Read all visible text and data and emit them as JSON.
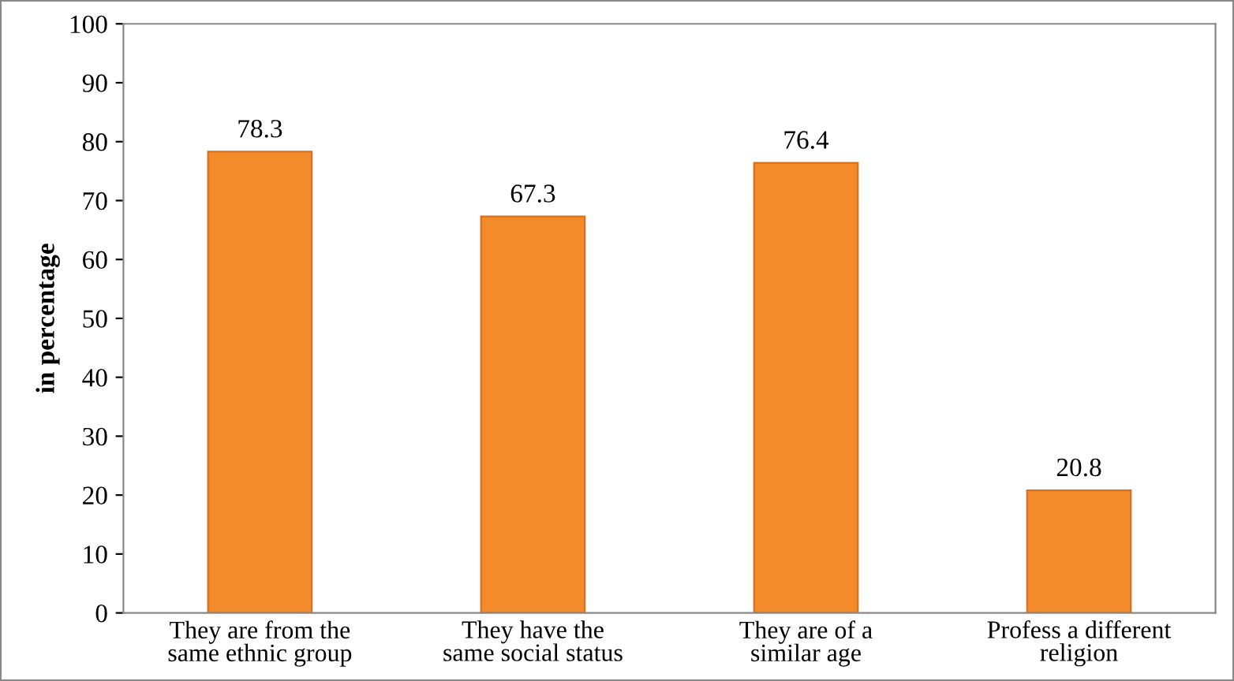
{
  "chart_data": {
    "type": "bar",
    "ylabel": "in percentage",
    "categories": [
      "They are from the\nsame ethnic group",
      "They have the\nsame social status",
      "They are of a\nsimilar age",
      "Profess a different\nreligion"
    ],
    "values": [
      78.3,
      67.3,
      76.4,
      20.8
    ],
    "color": "#f38b2a",
    "ylim": [
      0,
      100
    ],
    "yticks": [
      0,
      10,
      20,
      30,
      40,
      50,
      60,
      70,
      80,
      90,
      100
    ],
    "grid": false,
    "data_labels": true
  }
}
